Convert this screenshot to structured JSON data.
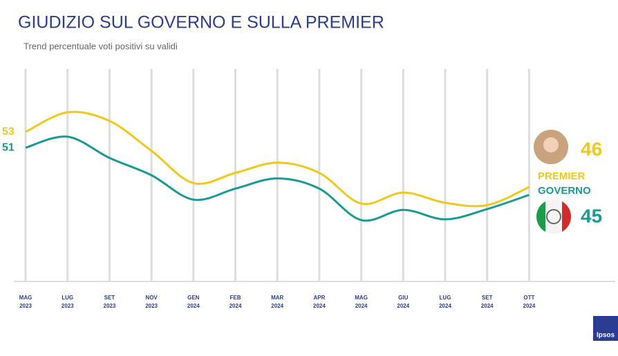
{
  "chart_data": {
    "type": "line",
    "title": "GIUDIZIO SUL GOVERNO E SULLA PREMIER",
    "subtitle": "Trend percentuale voti positivi su validi",
    "categories": [
      [
        "MAG",
        "2023"
      ],
      [
        "LUG",
        "2023"
      ],
      [
        "SET",
        "2023"
      ],
      [
        "NOV",
        "2023"
      ],
      [
        "GEN",
        "2024"
      ],
      [
        "FEB",
        "2024"
      ],
      [
        "MAR",
        "2024"
      ],
      [
        "APR",
        "2024"
      ],
      [
        "MAG",
        "2024"
      ],
      [
        "GIU",
        "2024"
      ],
      [
        "LUG",
        "2024"
      ],
      [
        "SET",
        "2024"
      ],
      [
        "OTT",
        "2024"
      ]
    ],
    "series": [
      {
        "name": "PREMIER",
        "color": "#f2c81a",
        "values": [
          53,
          55.5,
          54.4,
          50.6,
          46.5,
          47.8,
          49.1,
          47.8,
          43.9,
          45.3,
          44,
          43.7,
          46
        ]
      },
      {
        "name": "GOVERNO",
        "color": "#1a9a95",
        "values": [
          51,
          52.4,
          49.7,
          47.5,
          44.4,
          45.8,
          47.1,
          45.8,
          41.8,
          43.1,
          41.9,
          43.2,
          45
        ]
      }
    ],
    "ylim": [
      34,
      61
    ],
    "grid": true,
    "logo": "Ipsos"
  }
}
